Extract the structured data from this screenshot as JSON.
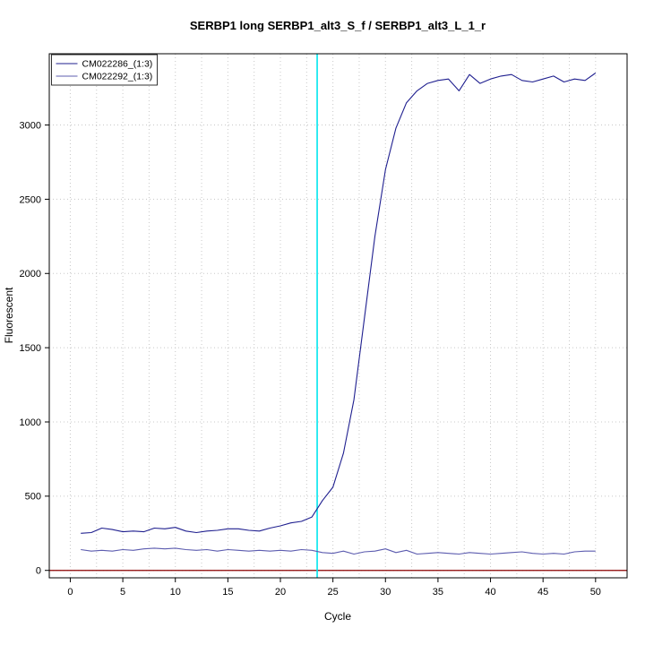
{
  "chart_data": {
    "type": "line",
    "title": "SERBP1 long SERBP1_alt3_S_f / SERBP1_alt3_L_1_r",
    "xlabel": "Cycle",
    "ylabel": "Fluorescent",
    "x_ticks": [
      0,
      5,
      10,
      15,
      20,
      25,
      30,
      35,
      40,
      45,
      50
    ],
    "y_ticks": [
      0,
      500,
      1000,
      1500,
      2000,
      2500,
      3000
    ],
    "xlim": [
      -2,
      53
    ],
    "ylim": [
      -50,
      3480
    ],
    "x_grid_step": 2.5,
    "y_grid_step": 500,
    "grid": true,
    "legend_position": "top-left",
    "x": [
      1,
      2,
      3,
      4,
      5,
      6,
      7,
      8,
      9,
      10,
      11,
      12,
      13,
      14,
      15,
      16,
      17,
      18,
      19,
      20,
      21,
      22,
      23,
      24,
      25,
      26,
      27,
      28,
      29,
      30,
      31,
      32,
      33,
      34,
      35,
      36,
      37,
      38,
      39,
      40,
      41,
      42,
      43,
      44,
      45,
      46,
      47,
      48,
      49,
      50
    ],
    "series": [
      {
        "name": "CM022286_(1:3)",
        "color": "#1f1f8f",
        "values": [
          250,
          255,
          285,
          275,
          260,
          265,
          260,
          285,
          280,
          290,
          265,
          255,
          265,
          270,
          280,
          280,
          270,
          265,
          285,
          300,
          320,
          330,
          360,
          470,
          560,
          790,
          1150,
          1700,
          2250,
          2700,
          2980,
          3150,
          3230,
          3280,
          3300,
          3310,
          3230,
          3340,
          3280,
          3310,
          3330,
          3340,
          3300,
          3290,
          3310,
          3330,
          3290,
          3310,
          3300,
          3350
        ]
      },
      {
        "name": "CM022292_(1:3)",
        "color": "#5c5caf",
        "values": [
          140,
          130,
          135,
          130,
          140,
          135,
          145,
          150,
          145,
          150,
          140,
          135,
          140,
          130,
          140,
          135,
          130,
          135,
          130,
          135,
          130,
          140,
          135,
          120,
          115,
          130,
          110,
          125,
          130,
          145,
          120,
          135,
          110,
          115,
          120,
          115,
          110,
          120,
          115,
          110,
          115,
          120,
          125,
          115,
          110,
          115,
          110,
          125,
          130,
          130
        ]
      }
    ],
    "threshold_line": {
      "x": 23.5,
      "color": "#00e5ee"
    },
    "baseline": {
      "y": 0,
      "color": "#8b0000"
    },
    "grid_color": "#c8c8c8",
    "box_color": "#000000"
  }
}
